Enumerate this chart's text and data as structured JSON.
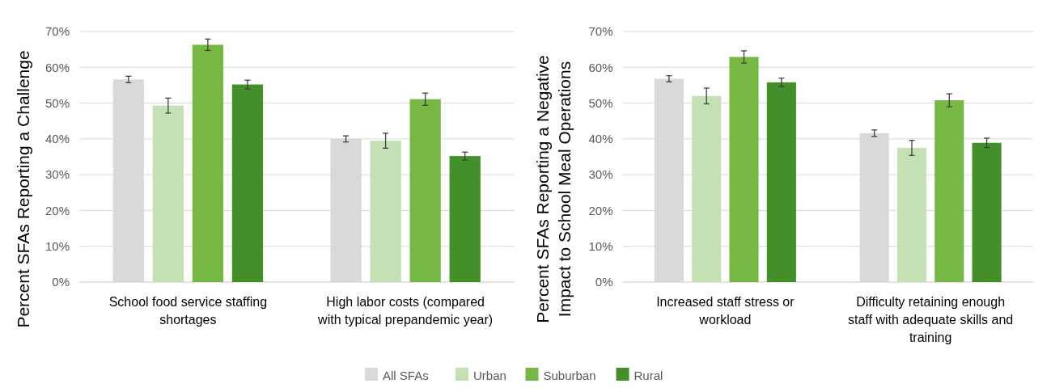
{
  "chart_data": [
    {
      "type": "bar",
      "ylabel": "Percent SFAs Reporting a Challenge",
      "categories": [
        "School food service staffing shortages",
        "High labor costs (compared with typical prepandemic year)"
      ],
      "series": [
        {
          "name": "All SFAs",
          "color": "#d9d9d9",
          "values": [
            56.6,
            40.0
          ],
          "errors": [
            0.9,
            0.85
          ]
        },
        {
          "name": "Urban",
          "color": "#c5e0b4",
          "values": [
            49.3,
            39.5
          ],
          "errors": [
            2.1,
            2.1
          ]
        },
        {
          "name": "Suburban",
          "color": "#76b843",
          "values": [
            66.3,
            51.1
          ],
          "errors": [
            1.6,
            1.7
          ]
        },
        {
          "name": "Rural",
          "color": "#43902a",
          "values": [
            55.2,
            35.2
          ],
          "errors": [
            1.2,
            1.1
          ]
        }
      ],
      "ylim": [
        0,
        70
      ],
      "yticks": [
        {
          "value": 0,
          "label": "0%"
        },
        {
          "value": 10,
          "label": "10%"
        },
        {
          "value": 20,
          "label": "20%"
        },
        {
          "value": 30,
          "label": "30%"
        },
        {
          "value": 40,
          "label": "40%"
        },
        {
          "value": 50,
          "label": "50%"
        },
        {
          "value": 60,
          "label": "60%"
        },
        {
          "value": 70,
          "label": "70%"
        }
      ],
      "grid": "y",
      "legend": "bottom"
    },
    {
      "type": "bar",
      "ylabel": "Percent SFAs Reporting a Negative Impact to School Meal Operations",
      "categories": [
        "Increased staff stress or workload",
        "Difficulty retaining enough staff with adequate skills and training"
      ],
      "series": [
        {
          "color": "#d9d9d9",
          "values": [
            56.8,
            41.6
          ],
          "errors": [
            0.85,
            0.9
          ]
        },
        {
          "color": "#c5e0b4",
          "values": [
            52.0,
            37.5
          ],
          "errors": [
            2.2,
            2.1
          ]
        },
        {
          "color": "#76b843",
          "values": [
            62.9,
            50.8
          ],
          "errors": [
            1.7,
            1.8
          ]
        },
        {
          "color": "#43902a",
          "values": [
            55.8,
            38.9
          ],
          "errors": [
            1.2,
            1.3
          ]
        }
      ],
      "ylim": [
        0,
        70
      ],
      "yticks": [
        {
          "value": 0,
          "label": "0%"
        },
        {
          "value": 10,
          "label": "10%"
        },
        {
          "value": 20,
          "label": "20%"
        },
        {
          "value": 30,
          "label": "30%"
        },
        {
          "value": 40,
          "label": "40%"
        },
        {
          "value": 50,
          "label": "50%"
        },
        {
          "value": 60,
          "label": "60%"
        },
        {
          "value": 70,
          "label": "70%"
        }
      ],
      "grid": "y"
    }
  ]
}
